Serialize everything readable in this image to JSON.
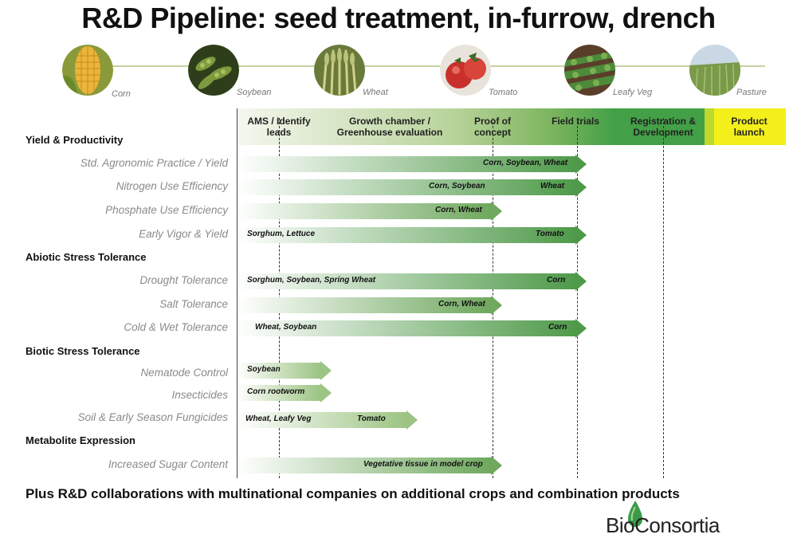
{
  "title": "R&D Pipeline: seed treatment, in-furrow, drench",
  "crops": [
    {
      "name": "Corn",
      "icon": "corn-icon",
      "color": "#e9b53a"
    },
    {
      "name": "Soybean",
      "icon": "soybean-icon",
      "color": "#6e8a3c"
    },
    {
      "name": "Wheat",
      "icon": "wheat-icon",
      "color": "#a8b070"
    },
    {
      "name": "Tomato",
      "icon": "tomato-icon",
      "color": "#c9302c"
    },
    {
      "name": "Leafy Veg",
      "icon": "leafy-veg-icon",
      "color": "#4d7a3a"
    },
    {
      "name": "Pasture",
      "icon": "pasture-icon",
      "color": "#8aa860"
    }
  ],
  "phases": [
    "AMS / Identify leads",
    "Growth chamber / Greenhouse evaluation",
    "Proof of concept",
    "Field trials",
    "Registration & Development",
    "Product launch"
  ],
  "categories": {
    "yield": "Yield & Productivity",
    "abiotic": "Abiotic Stress Tolerance",
    "biotic": "Biotic Stress Tolerance",
    "metabolite": "Metabolite Expression"
  },
  "rows": [
    {
      "label": "Std. Agronomic Practice / Yield",
      "stage_end": 4,
      "texts": [
        "Corn, Soybean, Wheat"
      ]
    },
    {
      "label": "Nitrogen Use Efficiency",
      "stage_end": 4,
      "texts": [
        "Corn, Soybean",
        "Wheat"
      ]
    },
    {
      "label": "Phosphate Use Efficiency",
      "stage_end": 3,
      "texts": [
        "Corn, Wheat"
      ]
    },
    {
      "label": "Early Vigor & Yield",
      "stage_end": 4,
      "texts": [
        "Sorghum, Lettuce",
        "Tomato"
      ]
    },
    {
      "label": "Drought Tolerance",
      "stage_end": 4,
      "texts": [
        "Sorghum, Soybean, Spring Wheat",
        "Corn"
      ]
    },
    {
      "label": "Salt Tolerance",
      "stage_end": 3,
      "texts": [
        "Corn, Wheat"
      ]
    },
    {
      "label": "Cold & Wet Tolerance",
      "stage_end": 4,
      "texts": [
        "Wheat, Soybean",
        "Corn"
      ]
    },
    {
      "label": "Nematode Control",
      "stage_end": 1,
      "texts": [
        "Soybean"
      ]
    },
    {
      "label": "Insecticides",
      "stage_end": 1,
      "texts": [
        "Corn rootworm"
      ]
    },
    {
      "label": "Soil & Early Season Fungicides",
      "stage_end": 2,
      "texts": [
        "Wheat, Leafy Veg",
        "Tomato"
      ]
    },
    {
      "label": "Increased Sugar Content",
      "stage_end": 3,
      "texts": [
        "Vegetative tissue in model crop"
      ]
    }
  ],
  "footer": "Plus R&D collaborations with multinational companies on additional crops and combination products",
  "logo": "BioConsortia",
  "colors": {
    "phase_light": "#f2f6ea",
    "phase_dark": "#3e9a3e",
    "launch": "#f2ef1a",
    "bar_start": "#ffffff",
    "bar_end": "#4f9a4a"
  }
}
